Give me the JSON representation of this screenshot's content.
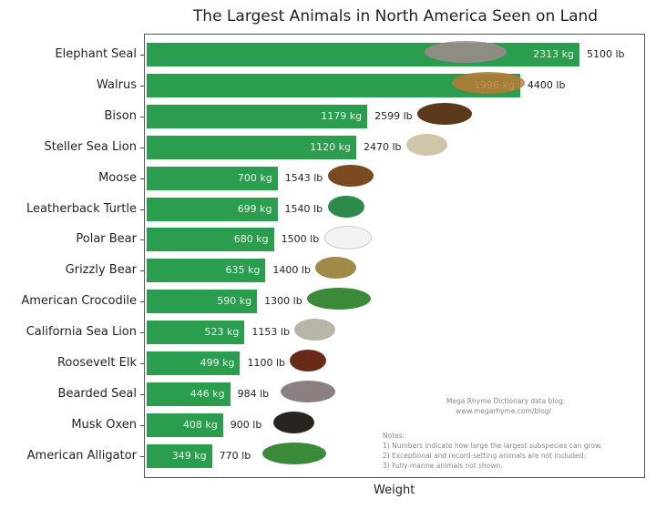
{
  "chart_data": {
    "type": "bar",
    "orientation": "horizontal",
    "title": "The Largest Animals in North America Seen on Land",
    "xlabel": "Weight",
    "ylabel": "",
    "bar_color": "#2a9d4f",
    "categories": [
      "Elephant Seal",
      "Walrus",
      "Bison",
      "Steller Sea Lion",
      "Moose",
      "Leatherback Turtle",
      "Polar Bear",
      "Grizzly Bear",
      "American Crocodile",
      "California Sea Lion",
      "Roosevelt Elk",
      "Bearded Seal",
      "Musk Oxen",
      "American Alligator"
    ],
    "series": [
      {
        "name": "kg",
        "values": [
          2313,
          1996,
          1179,
          1120,
          700,
          699,
          680,
          635,
          590,
          523,
          499,
          446,
          408,
          349
        ]
      },
      {
        "name": "lb",
        "values": [
          5100,
          4400,
          2599,
          2470,
          1543,
          1540,
          1500,
          1400,
          1300,
          1153,
          1100,
          984,
          900,
          770
        ]
      }
    ],
    "grid": false,
    "annotations": {
      "source": [
        "Mega Rhyme Dictionary data blog:",
        "www.megarhyme.com/blog/"
      ],
      "notes": [
        "Notes:",
        "1) Numbers indicate how large the largest subspecies can grow.",
        "2) Exceptional and record-setting animals are not included.",
        "3) Fully-marine animals not shown."
      ]
    },
    "animal_colors": [
      "#a08a8c",
      "#b87a35",
      "#5a3a1a",
      "#cfc5a8",
      "#7a4a20",
      "#2e8a4a",
      "#f2f2f0",
      "#a08a4a",
      "#3a8a3a",
      "#b8b4a8",
      "#6a2a1a",
      "#8a8080",
      "#2a2420",
      "#3a8a3a"
    ]
  },
  "rows": [
    {
      "label": "Elephant Seal",
      "kg": "2313 kg",
      "lb": "5100 lb"
    },
    {
      "label": "Walrus",
      "kg": "1996 kg",
      "lb": "4400 lb"
    },
    {
      "label": "Bison",
      "kg": "1179 kg",
      "lb": "2599 lb"
    },
    {
      "label": "Steller Sea Lion",
      "kg": "1120 kg",
      "lb": "2470 lb"
    },
    {
      "label": "Moose",
      "kg": "700 kg",
      "lb": "1543 lb"
    },
    {
      "label": "Leatherback Turtle",
      "kg": "699 kg",
      "lb": "1540 lb"
    },
    {
      "label": "Polar Bear",
      "kg": "680 kg",
      "lb": "1500 lb"
    },
    {
      "label": "Grizzly Bear",
      "kg": "635 kg",
      "lb": "1400 lb"
    },
    {
      "label": "American Crocodile",
      "kg": "590 kg",
      "lb": "1300 lb"
    },
    {
      "label": "California Sea Lion",
      "kg": "523 kg",
      "lb": "1153 lb"
    },
    {
      "label": "Roosevelt Elk",
      "kg": "499 kg",
      "lb": "1100 lb"
    },
    {
      "label": "Bearded Seal",
      "kg": "446 kg",
      "lb": "984 lb"
    },
    {
      "label": "Musk Oxen",
      "kg": "408 kg",
      "lb": "900 lb"
    },
    {
      "label": "American Alligator",
      "kg": "349 kg",
      "lb": "770 lb"
    }
  ],
  "title": "The Largest Animals in North America Seen on Land",
  "xlabel": "Weight",
  "source": [
    "Mega Rhyme Dictionary data blog:",
    "www.megarhyme.com/blog/"
  ],
  "notes": [
    "Notes:",
    "1) Numbers indicate how large the largest subspecies can grow.",
    "2) Exceptional and record-setting animals are not included.",
    "3) Fully-marine animals not shown."
  ]
}
